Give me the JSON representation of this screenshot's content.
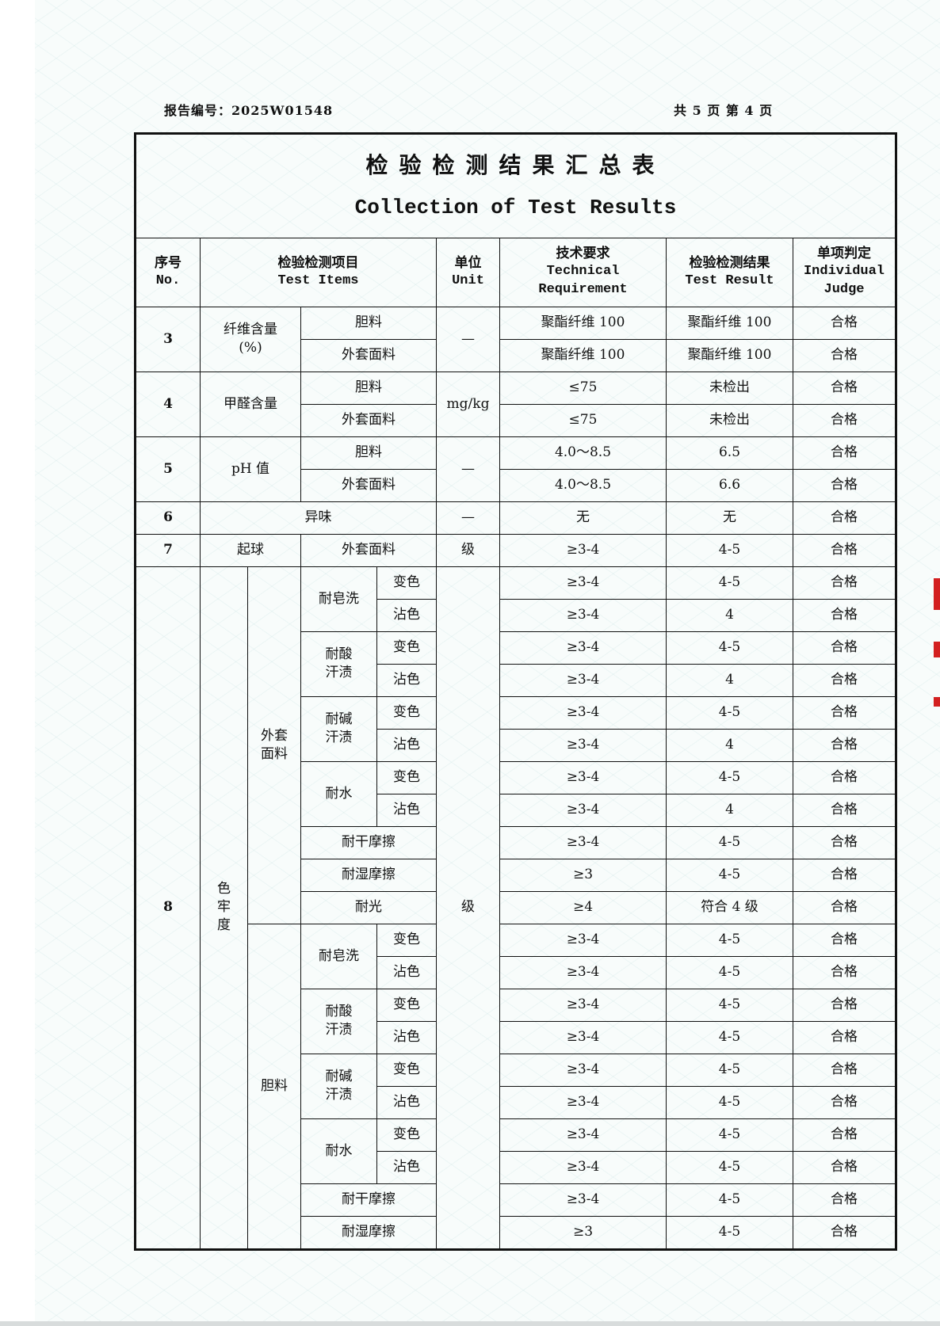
{
  "header": {
    "report_no": "报告编号：2025W01548",
    "pages": "共 5 页  第 4 页"
  },
  "title": {
    "zh": "检验检测结果汇总表",
    "en": "Collection of Test Results"
  },
  "columns": {
    "no": {
      "zh": "序号",
      "en": "No."
    },
    "items": {
      "zh": "检验检测项目",
      "en": "Test Items"
    },
    "unit": {
      "zh": "单位",
      "en": "Unit"
    },
    "requirement": {
      "zh": "技术要求",
      "en": "Technical\nRequirement"
    },
    "result": {
      "zh": "检验检测结果",
      "en": "Test Result"
    },
    "judge": {
      "zh": "单项判定",
      "en": "Individual\nJudge"
    }
  },
  "simple_items": [
    {
      "no": "3",
      "name": "纤维含量\n(%)",
      "unit": "—",
      "rows": [
        {
          "part": "胆料",
          "req": "聚酯纤维 100",
          "result": "聚酯纤维 100",
          "judge": "合格"
        },
        {
          "part": "外套面料",
          "req": "聚酯纤维 100",
          "result": "聚酯纤维 100",
          "judge": "合格"
        }
      ]
    },
    {
      "no": "4",
      "name": "甲醛含量",
      "unit": "mg/kg",
      "rows": [
        {
          "part": "胆料",
          "req": "≤75",
          "result": "未检出",
          "judge": "合格"
        },
        {
          "part": "外套面料",
          "req": "≤75",
          "result": "未检出",
          "judge": "合格"
        }
      ]
    },
    {
      "no": "5",
      "name": "pH 值",
      "unit": "—",
      "rows": [
        {
          "part": "胆料",
          "req": "4.0～8.5",
          "result": "6.5",
          "judge": "合格"
        },
        {
          "part": "外套面料",
          "req": "4.0～8.5",
          "result": "6.6",
          "judge": "合格"
        }
      ]
    }
  ],
  "item6": {
    "no": "6",
    "name": "异味",
    "unit": "—",
    "req": "无",
    "result": "无",
    "judge": "合格"
  },
  "item7": {
    "no": "7",
    "name": "起球",
    "part": "外套面料",
    "unit": "级",
    "req": "≥3-4",
    "result": "4-5",
    "judge": "合格"
  },
  "item8": {
    "no": "8",
    "name": "色\n牢\n度",
    "unit": "级",
    "groups": [
      {
        "part": "外套\n面料",
        "tests": [
          {
            "name": "耐皂洗",
            "sub": [
              {
                "aspect": "变色",
                "req": "≥3-4",
                "result": "4-5",
                "judge": "合格"
              },
              {
                "aspect": "沾色",
                "req": "≥3-4",
                "result": "4",
                "judge": "合格"
              }
            ]
          },
          {
            "name": "耐酸\n汗渍",
            "sub": [
              {
                "aspect": "变色",
                "req": "≥3-4",
                "result": "4-5",
                "judge": "合格"
              },
              {
                "aspect": "沾色",
                "req": "≥3-4",
                "result": "4",
                "judge": "合格"
              }
            ]
          },
          {
            "name": "耐碱\n汗渍",
            "sub": [
              {
                "aspect": "变色",
                "req": "≥3-4",
                "result": "4-5",
                "judge": "合格"
              },
              {
                "aspect": "沾色",
                "req": "≥3-4",
                "result": "4",
                "judge": "合格"
              }
            ]
          },
          {
            "name": "耐水",
            "sub": [
              {
                "aspect": "变色",
                "req": "≥3-4",
                "result": "4-5",
                "judge": "合格"
              },
              {
                "aspect": "沾色",
                "req": "≥3-4",
                "result": "4",
                "judge": "合格"
              }
            ]
          },
          {
            "name": "耐干摩擦",
            "req": "≥3-4",
            "result": "4-5",
            "judge": "合格"
          },
          {
            "name": "耐湿摩擦",
            "req": "≥3",
            "result": "4-5",
            "judge": "合格"
          },
          {
            "name": "耐光",
            "req": "≥4",
            "result": "符合 4 级",
            "judge": "合格"
          }
        ]
      },
      {
        "part": "胆料",
        "tests": [
          {
            "name": "耐皂洗",
            "sub": [
              {
                "aspect": "变色",
                "req": "≥3-4",
                "result": "4-5",
                "judge": "合格"
              },
              {
                "aspect": "沾色",
                "req": "≥3-4",
                "result": "4-5",
                "judge": "合格"
              }
            ]
          },
          {
            "name": "耐酸\n汗渍",
            "sub": [
              {
                "aspect": "变色",
                "req": "≥3-4",
                "result": "4-5",
                "judge": "合格"
              },
              {
                "aspect": "沾色",
                "req": "≥3-4",
                "result": "4-5",
                "judge": "合格"
              }
            ]
          },
          {
            "name": "耐碱\n汗渍",
            "sub": [
              {
                "aspect": "变色",
                "req": "≥3-4",
                "result": "4-5",
                "judge": "合格"
              },
              {
                "aspect": "沾色",
                "req": "≥3-4",
                "result": "4-5",
                "judge": "合格"
              }
            ]
          },
          {
            "name": "耐水",
            "sub": [
              {
                "aspect": "变色",
                "req": "≥3-4",
                "result": "4-5",
                "judge": "合格"
              },
              {
                "aspect": "沾色",
                "req": "≥3-4",
                "result": "4-5",
                "judge": "合格"
              }
            ]
          },
          {
            "name": "耐干摩擦",
            "req": "≥3-4",
            "result": "4-5",
            "judge": "合格"
          },
          {
            "name": "耐湿摩擦",
            "req": "≥3",
            "result": "4-5",
            "judge": "合格"
          }
        ]
      }
    ]
  }
}
